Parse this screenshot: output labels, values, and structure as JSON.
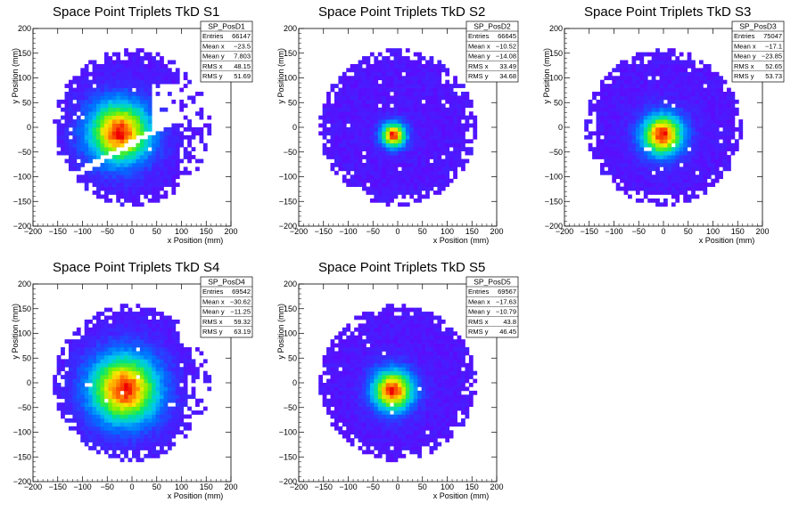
{
  "chart_data": [
    {
      "type": "heatmap",
      "title": "Space Point Triplets TkD S1",
      "xlabel": "x Position (mm)",
      "ylabel": "y Position (mm)",
      "xlim": [
        -200,
        200
      ],
      "ylim": [
        -200,
        200
      ],
      "xticks": [
        -200,
        -150,
        -100,
        -50,
        0,
        50,
        100,
        150,
        200
      ],
      "yticks": [
        -200,
        -150,
        -100,
        -50,
        0,
        50,
        100,
        150,
        200
      ],
      "stats": {
        "name": "SP_PosD1",
        "rows": [
          {
            "label": "Entries",
            "value": "66147"
          },
          {
            "label": "Mean x",
            "value": "−23.5"
          },
          {
            "label": "Mean y",
            "value": "7.803"
          },
          {
            "label": "RMS x",
            "value": "48.15"
          },
          {
            "label": "RMS y",
            "value": "51.69"
          }
        ]
      },
      "peak": [
        -25,
        -10
      ],
      "spread": [
        45,
        45
      ]
    },
    {
      "type": "heatmap",
      "title": "Space Point Triplets TkD S2",
      "xlabel": "x Position (mm)",
      "ylabel": "y Position (mm)",
      "xlim": [
        -200,
        200
      ],
      "ylim": [
        -200,
        200
      ],
      "xticks": [
        -200,
        -150,
        -100,
        -50,
        0,
        50,
        100,
        150,
        200
      ],
      "yticks": [
        -200,
        -150,
        -100,
        -50,
        0,
        50,
        100,
        150,
        200
      ],
      "stats": {
        "name": "SP_PosD2",
        "rows": [
          {
            "label": "Entries",
            "value": "66645"
          },
          {
            "label": "Mean x",
            "value": "−10.52"
          },
          {
            "label": "Mean y",
            "value": "−14.08"
          },
          {
            "label": "RMS x",
            "value": "33.49"
          },
          {
            "label": "RMS y",
            "value": "34.68"
          }
        ]
      },
      "peak": [
        -8,
        -15
      ],
      "spread": [
        18,
        18
      ]
    },
    {
      "type": "heatmap",
      "title": "Space Point Triplets TkD S3",
      "xlabel": "x Position (mm)",
      "ylabel": "y Position (mm)",
      "xlim": [
        -200,
        200
      ],
      "ylim": [
        -200,
        200
      ],
      "xticks": [
        -200,
        -150,
        -100,
        -50,
        0,
        50,
        100,
        150,
        200
      ],
      "yticks": [
        -200,
        -150,
        -100,
        -50,
        0,
        50,
        100,
        150,
        200
      ],
      "stats": {
        "name": "SP_PosD3",
        "rows": [
          {
            "label": "Entries",
            "value": "75047"
          },
          {
            "label": "Mean x",
            "value": "−17.1"
          },
          {
            "label": "Mean y",
            "value": "−23.85"
          },
          {
            "label": "RMS x",
            "value": "52.65"
          },
          {
            "label": "RMS y",
            "value": "53.73"
          }
        ]
      },
      "peak": [
        -2,
        -15
      ],
      "spread": [
        30,
        30
      ]
    },
    {
      "type": "heatmap",
      "title": "Space Point Triplets TkD S4",
      "xlabel": "x Position (mm)",
      "ylabel": "y Position (mm)",
      "xlim": [
        -200,
        200
      ],
      "ylim": [
        -200,
        200
      ],
      "xticks": [
        -200,
        -150,
        -100,
        -50,
        0,
        50,
        100,
        150,
        200
      ],
      "yticks": [
        -200,
        -150,
        -100,
        -50,
        0,
        50,
        100,
        150,
        200
      ],
      "stats": {
        "name": "SP_PosD4",
        "rows": [
          {
            "label": "Entries",
            "value": "69542"
          },
          {
            "label": "Mean x",
            "value": "−30.62"
          },
          {
            "label": "Mean y",
            "value": "−11.25"
          },
          {
            "label": "RMS x",
            "value": "59.32"
          },
          {
            "label": "RMS y",
            "value": "63.19"
          }
        ]
      },
      "peak": [
        -15,
        -12
      ],
      "spread": [
        50,
        50
      ]
    },
    {
      "type": "heatmap",
      "title": "Space Point Triplets TkD S5",
      "xlabel": "x Position (mm)",
      "ylabel": "y Position (mm)",
      "xlim": [
        -200,
        200
      ],
      "ylim": [
        -200,
        200
      ],
      "xticks": [
        -200,
        -150,
        -100,
        -50,
        0,
        50,
        100,
        150,
        200
      ],
      "yticks": [
        -200,
        -150,
        -100,
        -50,
        0,
        50,
        100,
        150,
        200
      ],
      "stats": {
        "name": "SP_PosD5",
        "rows": [
          {
            "label": "Entries",
            "value": "69567"
          },
          {
            "label": "Mean x",
            "value": "−17.63"
          },
          {
            "label": "Mean y",
            "value": "−10.79"
          },
          {
            "label": "RMS x",
            "value": "43.8"
          },
          {
            "label": "RMS y",
            "value": "46.45"
          }
        ]
      },
      "peak": [
        -10,
        -15
      ],
      "spread": [
        30,
        30
      ]
    }
  ]
}
